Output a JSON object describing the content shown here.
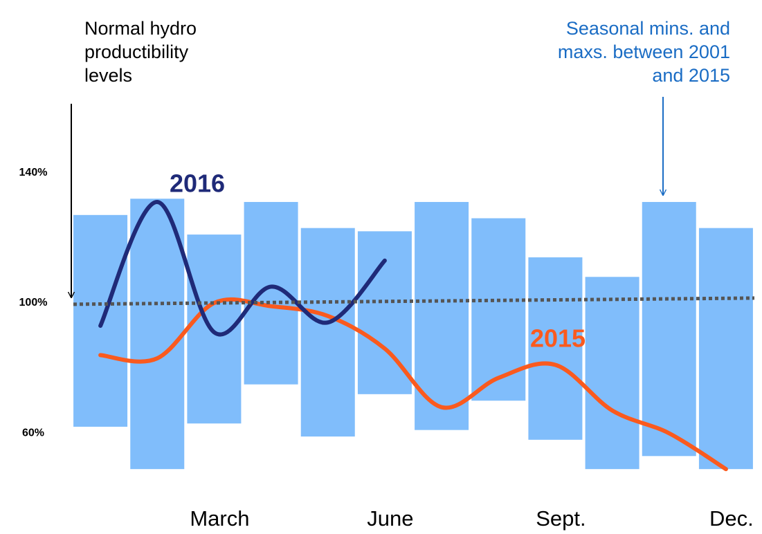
{
  "chart_data": {
    "type": "bar",
    "categories": [
      null,
      null,
      "March",
      null,
      null,
      "June",
      null,
      null,
      "Sept.",
      null,
      null,
      "Dec."
    ],
    "ranges": {
      "color": "#80bdfb",
      "low": [
        62,
        49,
        63,
        75,
        59,
        72,
        61,
        70,
        58,
        49,
        53,
        49
      ],
      "high": [
        127,
        132,
        121,
        131,
        123,
        122,
        131,
        126,
        114,
        108,
        131,
        123
      ]
    },
    "series": [
      {
        "name": "2016",
        "color": "#1f2a78",
        "values": [
          93,
          131,
          91,
          105,
          94,
          113,
          null,
          null,
          null,
          null,
          null,
          null
        ]
      },
      {
        "name": "2015",
        "color": "#fa5a1e",
        "values": [
          84,
          83,
          100,
          99,
          96,
          86,
          68,
          77,
          81,
          67,
          60,
          49
        ]
      }
    ],
    "reference_line": {
      "color": "#555555",
      "values": [
        99.6,
        101.5
      ]
    },
    "ylim": [
      45,
      150
    ],
    "yticks": [
      {
        "value": 60,
        "label": "60%"
      },
      {
        "value": 100,
        "label": "100%"
      },
      {
        "value": 140,
        "label": "140%"
      }
    ],
    "annotations": [
      {
        "lines": [
          "Normal hydro",
          "productibility",
          "levels"
        ],
        "color": "#000000"
      },
      {
        "lines": [
          "Seasonal mins. and",
          "maxs. between 2001",
          "and 2015"
        ],
        "color": "#1a6cc4"
      }
    ]
  }
}
